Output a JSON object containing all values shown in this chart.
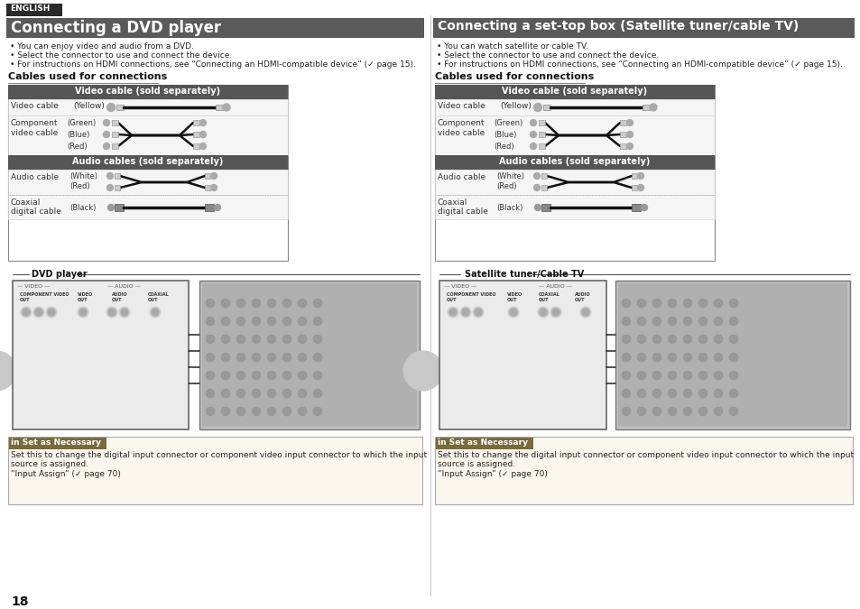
{
  "bg_color": "#ffffff",
  "page_number": "18",
  "left_title": "Connecting a DVD player",
  "right_title": "Connecting a set-top box (Satellite tuner/cable TV)",
  "title_bg": "#5a5a5a",
  "title_fg": "#ffffff",
  "english_tab_bg": "#2a2a2a",
  "left_bullets": [
    "You can enjoy video and audio from a DVD.",
    "Select the connector to use and connect the device.",
    "For instructions on HDMI connections, see “Connecting an HDMI-compatible device” (✓ page 15)."
  ],
  "right_bullets": [
    "You can watch satellite or cable TV.",
    "Select the connector to use and connect the device.",
    "For instructions on HDMI connections, see “Connecting an HDMI-compatible device” (✓ page 15)."
  ],
  "cables_title": "Cables used for connections",
  "table_header_bg": "#555555",
  "video_header": "Video cable (sold separately)",
  "audio_header": "Audio cables (sold separately)",
  "note_title": "in Set as Necessary",
  "note_title_bg": "#7a6a3a",
  "left_note": "Set this to change the digital input connector or component video input connector to which the input\nsource is assigned.\n“Input Assign” (✓ page 70)",
  "right_note": "Set this to change the digital input connector or component video input connector to which the input\nsource is assigned.\n“Input Assign” (✓ page 70)",
  "left_device_label": "DVD player",
  "right_device_label": "Satellite tuner/Cable TV"
}
